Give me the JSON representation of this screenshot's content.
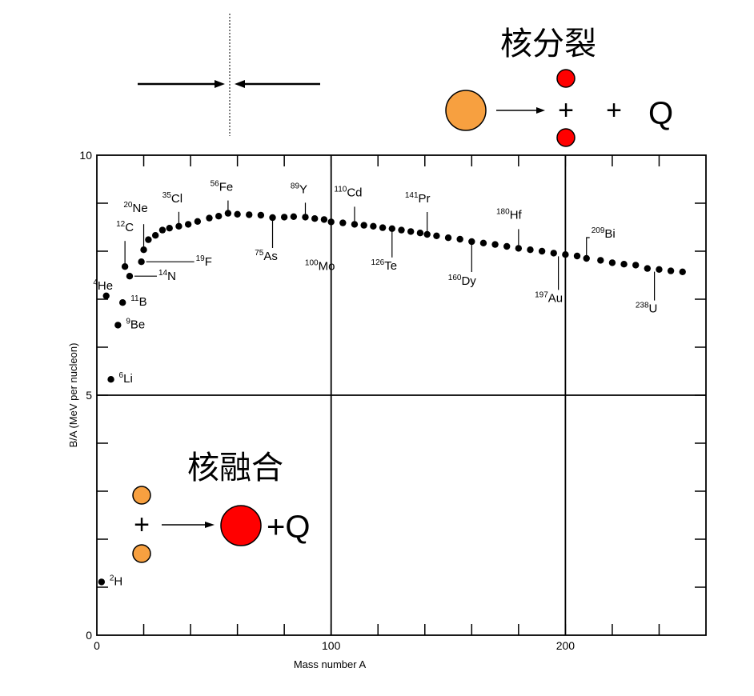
{
  "chart_data": {
    "type": "scatter",
    "xlabel": "Mass number A",
    "ylabel": "B/A (MeV per nucleon)",
    "xlim": [
      0,
      260
    ],
    "ylim": [
      0,
      10
    ],
    "x_ticks": [
      "0",
      "100",
      "200"
    ],
    "y_ticks": [
      "0",
      "5",
      "10"
    ],
    "grid": "x=100, x=200, y=5",
    "series": [
      {
        "values": [
          {
            "x": 2,
            "y": 1.11
          },
          {
            "x": 6,
            "y": 5.33
          },
          {
            "x": 9,
            "y": 6.46
          },
          {
            "x": 11,
            "y": 6.93
          },
          {
            "x": 4,
            "y": 7.07
          },
          {
            "x": 14,
            "y": 7.48
          },
          {
            "x": 12,
            "y": 7.68
          },
          {
            "x": 19,
            "y": 7.78
          },
          {
            "x": 20,
            "y": 8.03
          },
          {
            "x": 22,
            "y": 8.24
          },
          {
            "x": 25,
            "y": 8.33
          },
          {
            "x": 28,
            "y": 8.44
          },
          {
            "x": 31,
            "y": 8.48
          },
          {
            "x": 35,
            "y": 8.52
          },
          {
            "x": 39,
            "y": 8.56
          },
          {
            "x": 43,
            "y": 8.62
          },
          {
            "x": 48,
            "y": 8.69
          },
          {
            "x": 52,
            "y": 8.73
          },
          {
            "x": 56,
            "y": 8.79
          },
          {
            "x": 60,
            "y": 8.77
          },
          {
            "x": 65,
            "y": 8.76
          },
          {
            "x": 70,
            "y": 8.75
          },
          {
            "x": 75,
            "y": 8.7
          },
          {
            "x": 80,
            "y": 8.71
          },
          {
            "x": 84,
            "y": 8.72
          },
          {
            "x": 89,
            "y": 8.71
          },
          {
            "x": 93,
            "y": 8.68
          },
          {
            "x": 97,
            "y": 8.66
          },
          {
            "x": 100,
            "y": 8.61
          },
          {
            "x": 105,
            "y": 8.59
          },
          {
            "x": 110,
            "y": 8.56
          },
          {
            "x": 114,
            "y": 8.54
          },
          {
            "x": 118,
            "y": 8.52
          },
          {
            "x": 122,
            "y": 8.49
          },
          {
            "x": 126,
            "y": 8.47
          },
          {
            "x": 130,
            "y": 8.44
          },
          {
            "x": 134,
            "y": 8.41
          },
          {
            "x": 138,
            "y": 8.38
          },
          {
            "x": 141,
            "y": 8.35
          },
          {
            "x": 145,
            "y": 8.32
          },
          {
            "x": 150,
            "y": 8.28
          },
          {
            "x": 155,
            "y": 8.25
          },
          {
            "x": 160,
            "y": 8.2
          },
          {
            "x": 165,
            "y": 8.17
          },
          {
            "x": 170,
            "y": 8.14
          },
          {
            "x": 175,
            "y": 8.1
          },
          {
            "x": 180,
            "y": 8.06
          },
          {
            "x": 185,
            "y": 8.03
          },
          {
            "x": 190,
            "y": 8.0
          },
          {
            "x": 195,
            "y": 7.96
          },
          {
            "x": 200,
            "y": 7.93
          },
          {
            "x": 205,
            "y": 7.9
          },
          {
            "x": 209,
            "y": 7.85
          },
          {
            "x": 215,
            "y": 7.81
          },
          {
            "x": 220,
            "y": 7.76
          },
          {
            "x": 225,
            "y": 7.73
          },
          {
            "x": 230,
            "y": 7.71
          },
          {
            "x": 235,
            "y": 7.64
          },
          {
            "x": 240,
            "y": 7.62
          },
          {
            "x": 245,
            "y": 7.59
          },
          {
            "x": 250,
            "y": 7.57
          }
        ]
      }
    ],
    "annotations": [
      {
        "mass": "2",
        "symbol": "H",
        "x": 2,
        "y": 1.11
      },
      {
        "mass": "6",
        "symbol": "Li",
        "x": 6,
        "y": 5.33
      },
      {
        "mass": "9",
        "symbol": "Be",
        "x": 9,
        "y": 6.46
      },
      {
        "mass": "11",
        "symbol": "B",
        "x": 11,
        "y": 6.93
      },
      {
        "mass": "4",
        "symbol": "He",
        "x": 4,
        "y": 7.07
      },
      {
        "mass": "14",
        "symbol": "N",
        "x": 14,
        "y": 7.48
      },
      {
        "mass": "12",
        "symbol": "C",
        "x": 12,
        "y": 7.68
      },
      {
        "mass": "19",
        "symbol": "F",
        "x": 19,
        "y": 7.78
      },
      {
        "mass": "20",
        "symbol": "Ne",
        "x": 20,
        "y": 8.03
      },
      {
        "mass": "35",
        "symbol": "Cl",
        "x": 35,
        "y": 8.52
      },
      {
        "mass": "56",
        "symbol": "Fe",
        "x": 56,
        "y": 8.79
      },
      {
        "mass": "75",
        "symbol": "As",
        "x": 75,
        "y": 8.7
      },
      {
        "mass": "89",
        "symbol": "Y",
        "x": 89,
        "y": 8.71
      },
      {
        "mass": "100",
        "symbol": "Mo",
        "x": 100,
        "y": 8.61
      },
      {
        "mass": "110",
        "symbol": "Cd",
        "x": 110,
        "y": 8.56
      },
      {
        "mass": "126",
        "symbol": "Te",
        "x": 126,
        "y": 8.47
      },
      {
        "mass": "141",
        "symbol": "Pr",
        "x": 141,
        "y": 8.35
      },
      {
        "mass": "160",
        "symbol": "Dy",
        "x": 160,
        "y": 8.2
      },
      {
        "mass": "180",
        "symbol": "Hf",
        "x": 180,
        "y": 8.06
      },
      {
        "mass": "197",
        "symbol": "Au",
        "x": 197,
        "y": 7.96
      },
      {
        "mass": "209",
        "symbol": "Bi",
        "x": 209,
        "y": 7.85
      },
      {
        "mass": "238",
        "symbol": "U",
        "x": 238,
        "y": 7.64
      }
    ]
  },
  "fission": {
    "title": "核分裂",
    "plus_label": "+",
    "plus2_label": "+",
    "q_label": "Q",
    "parent_color": "#f7a040",
    "fragment_color": "#ff0000"
  },
  "fusion": {
    "title": "核融合",
    "plus_label": "+",
    "q_label": "+Q",
    "reactant_color": "#f7a040",
    "product_color": "#ff0000"
  }
}
